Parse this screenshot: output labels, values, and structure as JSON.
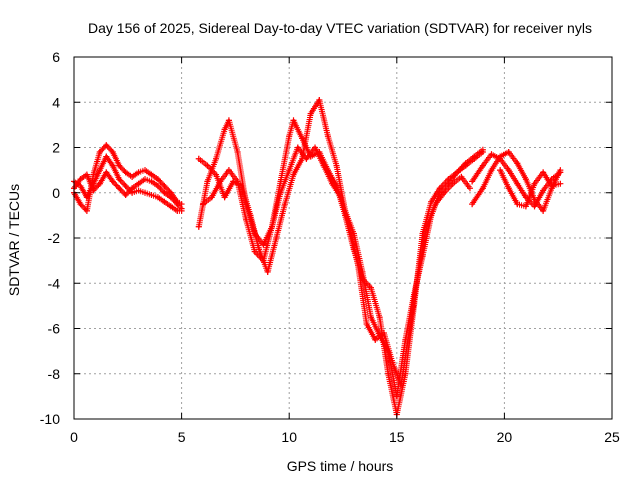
{
  "chart_data": {
    "type": "scatter",
    "title": "Day 156 of 2025, Sidereal Day-to-day VTEC variation (SDTVAR) for receiver nyls",
    "xlabel": "GPS time / hours",
    "ylabel": "SDTVAR / TECUs",
    "xlim": [
      0,
      25
    ],
    "ylim": [
      -10,
      6
    ],
    "xticks": [
      0,
      5,
      10,
      15,
      20,
      25
    ],
    "yticks": [
      -10,
      -8,
      -6,
      -4,
      -2,
      0,
      2,
      4,
      6
    ],
    "grid": true,
    "marker": "+",
    "color": "#ff0000",
    "series": [
      {
        "x": [
          0.0,
          0.3,
          0.6,
          0.9,
          1.2,
          1.5,
          1.8,
          2.1,
          2.4,
          2.7,
          3.0,
          3.3,
          3.6,
          3.9,
          4.2,
          4.5,
          4.8,
          5.0
        ],
        "y": [
          0.5,
          0.3,
          -0.2,
          0.4,
          1.0,
          1.6,
          1.2,
          0.6,
          0.3,
          0.0,
          0.1,
          0.0,
          -0.1,
          -0.2,
          -0.4,
          -0.6,
          -0.8,
          -0.8
        ]
      },
      {
        "x": [
          0.0,
          0.3,
          0.6,
          0.9,
          1.2,
          1.5,
          1.8,
          2.1,
          2.4,
          2.7,
          3.0,
          3.3,
          3.6,
          3.9,
          4.2,
          4.5,
          4.8,
          5.0
        ],
        "y": [
          0.0,
          -0.5,
          -0.8,
          0.8,
          1.8,
          2.1,
          1.8,
          1.2,
          0.9,
          0.7,
          0.9,
          1.0,
          0.8,
          0.6,
          0.3,
          0.0,
          -0.4,
          -0.5
        ]
      },
      {
        "x": [
          0.0,
          0.3,
          0.6,
          0.9,
          1.2,
          1.5,
          1.8,
          2.1,
          2.4,
          2.7,
          3.0,
          3.3,
          3.6,
          3.9,
          4.2,
          4.5,
          4.8,
          5.0
        ],
        "y": [
          0.2,
          0.6,
          0.8,
          0.1,
          0.4,
          0.9,
          0.5,
          0.2,
          -0.1,
          0.2,
          0.4,
          0.6,
          0.5,
          0.3,
          0.0,
          -0.2,
          -0.5,
          -0.7
        ]
      },
      {
        "x": [
          5.8,
          6.2,
          6.6,
          7.0,
          7.2,
          7.6,
          8.0,
          8.4,
          8.8,
          9.2,
          9.6,
          10.0,
          10.2,
          10.6,
          11.0,
          11.4,
          11.8,
          12.2,
          12.6,
          13.0,
          13.4,
          13.8,
          14.2,
          14.6,
          15.0,
          15.4,
          15.8,
          16.2,
          16.6,
          17.0,
          17.4,
          17.8,
          18.2,
          18.6,
          19.0
        ],
        "y": [
          -1.5,
          0.5,
          1.5,
          2.8,
          3.2,
          1.8,
          -0.5,
          -1.8,
          -2.3,
          -1.5,
          0.5,
          2.5,
          3.2,
          2.4,
          1.6,
          1.8,
          1.0,
          0.3,
          -1.0,
          -2.5,
          -3.8,
          -4.2,
          -5.5,
          -8.0,
          -9.8,
          -8.0,
          -5.0,
          -1.8,
          -0.4,
          0.2,
          0.6,
          0.9,
          1.3,
          1.6,
          1.9
        ]
      },
      {
        "x": [
          5.8,
          6.2,
          6.6,
          7.0,
          7.4,
          7.8,
          8.2,
          8.6,
          9.0,
          9.4,
          9.8,
          10.2,
          10.6,
          11.0,
          11.4,
          11.8,
          12.2,
          12.6,
          13.0,
          13.4,
          13.8,
          14.2,
          14.6,
          15.0,
          15.4,
          15.8,
          16.2,
          16.6,
          17.0,
          17.4,
          17.8,
          18.2,
          18.6,
          19.0
        ],
        "y": [
          1.5,
          1.2,
          0.8,
          -0.2,
          0.5,
          0.3,
          -1.0,
          -2.5,
          -3.5,
          -2.0,
          -0.5,
          0.8,
          1.5,
          3.5,
          4.1,
          2.5,
          1.2,
          -0.8,
          -1.8,
          -3.5,
          -5.5,
          -6.3,
          -7.0,
          -9.0,
          -6.5,
          -4.5,
          -2.8,
          -1.0,
          0.0,
          0.4,
          0.9,
          1.2,
          1.5,
          1.8
        ]
      },
      {
        "x": [
          6.0,
          6.4,
          6.8,
          7.2,
          7.6,
          8.0,
          8.4,
          8.8,
          9.2,
          9.6,
          10.0,
          10.4,
          10.8,
          11.2,
          11.6,
          12.0,
          12.4,
          12.8,
          13.2,
          13.6,
          14.0,
          14.4,
          14.8,
          15.2,
          15.6,
          16.0,
          16.4,
          16.8,
          17.2,
          17.6,
          18.0,
          18.4
        ],
        "y": [
          -0.5,
          -0.2,
          0.5,
          1.0,
          0.5,
          -1.2,
          -2.6,
          -3.0,
          -1.5,
          0.0,
          1.0,
          2.0,
          1.5,
          2.0,
          1.2,
          0.4,
          -0.2,
          -1.5,
          -3.2,
          -5.8,
          -6.5,
          -6.2,
          -7.5,
          -8.5,
          -6.0,
          -3.5,
          -1.5,
          -0.5,
          0.0,
          0.4,
          0.7,
          0.2
        ]
      },
      {
        "x": [
          18.5,
          19.0,
          19.4,
          19.8,
          20.2,
          20.6,
          21.0,
          21.4,
          21.8,
          22.2,
          22.6
        ],
        "y": [
          0.5,
          1.2,
          1.7,
          1.5,
          1.0,
          0.4,
          -0.2,
          -0.6,
          0.1,
          0.6,
          0.9
        ]
      },
      {
        "x": [
          18.5,
          19.0,
          19.4,
          19.8,
          20.2,
          20.6,
          21.0,
          21.4,
          21.8,
          22.2,
          22.6
        ],
        "y": [
          -0.5,
          0.2,
          1.0,
          1.6,
          1.8,
          1.3,
          0.6,
          -0.3,
          -0.8,
          0.2,
          1.0
        ]
      },
      {
        "x": [
          19.8,
          20.2,
          20.6,
          21.0,
          21.4,
          21.8,
          22.2,
          22.6
        ],
        "y": [
          1.0,
          0.2,
          -0.5,
          -0.6,
          0.4,
          0.9,
          0.3,
          0.4
        ]
      }
    ]
  }
}
